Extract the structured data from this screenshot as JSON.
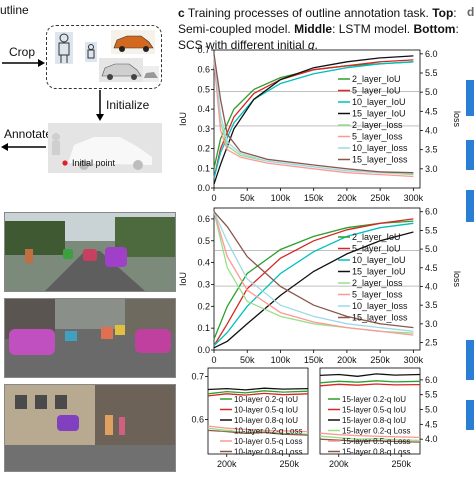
{
  "left_panel": {
    "title": "utline",
    "crop_label": "Crop",
    "initialize_label": "Initialize",
    "annotate_label": "Annotate",
    "initial_point_label": "Initial point"
  },
  "caption": {
    "letter": "c",
    "line1": "Training processes of outline annotation task.",
    "top": "Top",
    "line2a": "Semi-coupled model.",
    "middle": "Middle",
    "line2b": "LSTM model.",
    "bottom": "Bottom",
    "line3": "SCS with different initial",
    "q": "q",
    "right_letter": "d"
  },
  "chart_data": [
    {
      "type": "line",
      "title": "",
      "xlabel": "",
      "ylabel": "IoU",
      "y2label": "loss",
      "xlim": [
        0,
        310000
      ],
      "ylim": [
        0.0,
        0.7
      ],
      "y2lim": [
        2.5,
        6.1
      ],
      "x_ticks": [
        "0",
        "50k",
        "100k",
        "150k",
        "200k",
        "250k",
        "300k"
      ],
      "y_ticks": [
        "0.0",
        "0.1",
        "0.2",
        "0.3",
        "0.4",
        "0.5",
        "0.6",
        "0.7"
      ],
      "y2_ticks": [
        "3.0",
        "3.5",
        "4.0",
        "4.5",
        "5.0",
        "5.5",
        "6.0"
      ],
      "legend": "center-right",
      "series": [
        {
          "name": "2_layer_IoU",
          "color": "#2ca02c",
          "axis": "left",
          "x": [
            0,
            10000,
            30000,
            60000,
            100000,
            150000,
            200000,
            250000,
            300000
          ],
          "y": [
            0.1,
            0.25,
            0.4,
            0.5,
            0.56,
            0.6,
            0.62,
            0.63,
            0.64
          ]
        },
        {
          "name": "5_layer_IoU",
          "color": "#d62728",
          "axis": "left",
          "x": [
            0,
            10000,
            30000,
            60000,
            100000,
            150000,
            200000,
            250000,
            300000
          ],
          "y": [
            0.05,
            0.2,
            0.36,
            0.48,
            0.55,
            0.6,
            0.62,
            0.64,
            0.65
          ]
        },
        {
          "name": "10_layer_IoU",
          "color": "#00bfbf",
          "axis": "left",
          "x": [
            0,
            10000,
            30000,
            60000,
            100000,
            150000,
            200000,
            250000,
            300000
          ],
          "y": [
            0.05,
            0.18,
            0.33,
            0.45,
            0.53,
            0.58,
            0.61,
            0.63,
            0.64
          ]
        },
        {
          "name": "15_layer_IoU",
          "color": "#111111",
          "axis": "left",
          "x": [
            0,
            10000,
            30000,
            60000,
            100000,
            150000,
            200000,
            250000,
            300000
          ],
          "y": [
            0.02,
            0.12,
            0.3,
            0.45,
            0.55,
            0.61,
            0.64,
            0.66,
            0.67
          ]
        },
        {
          "name": "2_layer_loss",
          "color": "#98df8a",
          "axis": "right",
          "x": [
            0,
            10000,
            20000,
            40000,
            80000,
            150000,
            200000,
            250000,
            300000
          ],
          "y": [
            5.9,
            4.2,
            3.6,
            3.35,
            3.2,
            3.05,
            2.95,
            2.9,
            2.85
          ]
        },
        {
          "name": "5_layer_loss",
          "color": "#ff9896",
          "axis": "right",
          "x": [
            0,
            10000,
            20000,
            40000,
            80000,
            150000,
            200000,
            250000,
            300000
          ],
          "y": [
            5.8,
            4.0,
            3.5,
            3.3,
            3.15,
            3.0,
            2.9,
            2.85,
            2.8
          ]
        },
        {
          "name": "10_layer_loss",
          "color": "#9edae5",
          "axis": "right",
          "x": [
            0,
            10000,
            20000,
            40000,
            80000,
            150000,
            200000,
            250000,
            300000
          ],
          "y": [
            5.95,
            4.4,
            3.7,
            3.4,
            3.2,
            3.05,
            2.95,
            2.9,
            2.88
          ]
        },
        {
          "name": "15_layer_loss",
          "color": "#8c564b",
          "axis": "right",
          "x": [
            0,
            10000,
            20000,
            40000,
            80000,
            150000,
            200000,
            250000,
            300000
          ],
          "y": [
            6.0,
            4.8,
            3.9,
            3.45,
            3.25,
            3.1,
            3.0,
            2.92,
            2.9
          ]
        }
      ]
    },
    {
      "type": "line",
      "title": "",
      "xlabel": "",
      "ylabel": "IoU",
      "y2label": "loss",
      "xlim": [
        0,
        310000
      ],
      "ylim": [
        0.0,
        0.65
      ],
      "y2lim": [
        2.3,
        6.1
      ],
      "x_ticks": [
        "0",
        "50k",
        "100k",
        "150k",
        "200k",
        "250k",
        "300k"
      ],
      "y_ticks": [
        "0.0",
        "0.1",
        "0.2",
        "0.3",
        "0.4",
        "0.5",
        "0.6"
      ],
      "y2_ticks": [
        "2.5",
        "3.0",
        "3.5",
        "4.0",
        "4.5",
        "5.0",
        "5.5",
        "6.0"
      ],
      "legend": "center-right",
      "series": [
        {
          "name": "2_layer_IoU",
          "color": "#2ca02c",
          "axis": "left",
          "x": [
            0,
            20000,
            50000,
            100000,
            150000,
            200000,
            250000,
            300000
          ],
          "y": [
            0.05,
            0.2,
            0.35,
            0.46,
            0.52,
            0.56,
            0.58,
            0.59
          ]
        },
        {
          "name": "5_layer_IoU",
          "color": "#d62728",
          "axis": "left",
          "x": [
            0,
            20000,
            50000,
            100000,
            150000,
            200000,
            250000,
            300000
          ],
          "y": [
            0.02,
            0.12,
            0.28,
            0.42,
            0.5,
            0.55,
            0.58,
            0.6
          ]
        },
        {
          "name": "10_layer_IoU",
          "color": "#00bfbf",
          "axis": "left",
          "x": [
            0,
            20000,
            50000,
            100000,
            150000,
            200000,
            250000,
            300000
          ],
          "y": [
            0.02,
            0.08,
            0.2,
            0.35,
            0.45,
            0.52,
            0.56,
            0.58
          ]
        },
        {
          "name": "15_layer_IoU",
          "color": "#111111",
          "axis": "left",
          "x": [
            0,
            20000,
            50000,
            100000,
            150000,
            200000,
            250000,
            300000
          ],
          "y": [
            0.01,
            0.04,
            0.12,
            0.25,
            0.36,
            0.44,
            0.5,
            0.54
          ]
        },
        {
          "name": "2_layer_loss",
          "color": "#98df8a",
          "axis": "right",
          "x": [
            0,
            20000,
            50000,
            100000,
            150000,
            200000,
            250000,
            300000
          ],
          "y": [
            6.0,
            4.5,
            3.6,
            3.2,
            3.0,
            2.9,
            2.8,
            2.75
          ]
        },
        {
          "name": "5_layer_loss",
          "color": "#ff9896",
          "axis": "right",
          "x": [
            0,
            20000,
            50000,
            100000,
            150000,
            200000,
            250000,
            300000
          ],
          "y": [
            6.0,
            4.8,
            3.9,
            3.3,
            3.05,
            2.9,
            2.8,
            2.7
          ]
        },
        {
          "name": "10_layer_loss",
          "color": "#9edae5",
          "axis": "right",
          "x": [
            0,
            20000,
            50000,
            100000,
            150000,
            200000,
            250000,
            300000
          ],
          "y": [
            6.0,
            5.2,
            4.2,
            3.5,
            3.2,
            3.0,
            2.9,
            2.8
          ]
        },
        {
          "name": "15_layer_loss",
          "color": "#8c564b",
          "axis": "right",
          "x": [
            0,
            20000,
            50000,
            100000,
            150000,
            200000,
            250000,
            300000
          ],
          "y": [
            6.0,
            5.6,
            4.8,
            4.0,
            3.5,
            3.2,
            3.0,
            2.9
          ]
        }
      ]
    },
    {
      "type": "line",
      "title": "",
      "xlabel": "",
      "ylabel": "",
      "y2label": "",
      "xlim": [
        185000,
        265000
      ],
      "ylim": [
        0.52,
        0.72
      ],
      "x_ticks": [
        "200k",
        "250k"
      ],
      "y_ticks": [
        "0.6",
        "0.7"
      ],
      "legend": "lower-left",
      "series": [
        {
          "name": "10-layer 0.2-q IoU",
          "color": "#2ca02c",
          "x": [
            185000,
            200000,
            215000,
            230000,
            245000,
            265000
          ],
          "y": [
            0.66,
            0.665,
            0.662,
            0.667,
            0.664,
            0.666
          ]
        },
        {
          "name": "10-layer 0.5-q IoU",
          "color": "#d62728",
          "x": [
            185000,
            200000,
            215000,
            230000,
            245000,
            265000
          ],
          "y": [
            0.655,
            0.66,
            0.657,
            0.661,
            0.658,
            0.66
          ]
        },
        {
          "name": "10-layer 0.8-q IoU",
          "color": "#111111",
          "x": [
            185000,
            200000,
            215000,
            230000,
            245000,
            265000
          ],
          "y": [
            0.67,
            0.672,
            0.669,
            0.673,
            0.671,
            0.672
          ]
        },
        {
          "name": "10-layer 0.2-q Loss",
          "color": "#98df8a",
          "x": [
            185000,
            200000,
            215000,
            230000,
            245000,
            265000
          ],
          "y": [
            0.58,
            0.575,
            0.57,
            0.572,
            0.568,
            0.566
          ]
        },
        {
          "name": "10-layer 0.5-q Loss",
          "color": "#ff9896",
          "x": [
            185000,
            200000,
            215000,
            230000,
            245000,
            265000
          ],
          "y": [
            0.585,
            0.58,
            0.577,
            0.575,
            0.574,
            0.572
          ]
        },
        {
          "name": "10-layer 0.8-q Loss",
          "color": "#8c564b",
          "x": [
            185000,
            200000,
            215000,
            230000,
            245000,
            265000
          ],
          "y": [
            0.575,
            0.572,
            0.568,
            0.57,
            0.566,
            0.564
          ]
        }
      ]
    },
    {
      "type": "line",
      "title": "",
      "xlabel": "",
      "ylabel": "",
      "y2label": "",
      "xlim": [
        185000,
        265000
      ],
      "ylim": [
        3.5,
        6.4
      ],
      "x_ticks": [
        "200k",
        "250k"
      ],
      "y_ticks": [
        "4.0",
        "4.5",
        "5.0",
        "5.5",
        "6.0"
      ],
      "legend": "lower-left",
      "series": [
        {
          "name": "15-layer 0.2-q IoU",
          "color": "#2ca02c",
          "x": [
            185000,
            200000,
            215000,
            230000,
            245000,
            265000
          ],
          "y": [
            5.9,
            5.95,
            5.92,
            5.97,
            5.93,
            5.95
          ]
        },
        {
          "name": "15-layer 0.5-q IoU",
          "color": "#d62728",
          "x": [
            185000,
            200000,
            215000,
            230000,
            245000,
            265000
          ],
          "y": [
            5.8,
            5.85,
            5.82,
            5.86,
            5.83,
            5.84
          ]
        },
        {
          "name": "15-layer 0.8-q IoU",
          "color": "#111111",
          "x": [
            185000,
            200000,
            215000,
            230000,
            245000,
            265000
          ],
          "y": [
            6.15,
            6.18,
            6.12,
            6.2,
            6.16,
            6.18
          ]
        },
        {
          "name": "15-layer 0.2-q Loss",
          "color": "#98df8a",
          "x": [
            185000,
            200000,
            215000,
            230000,
            245000,
            265000
          ],
          "y": [
            4.1,
            4.05,
            4.0,
            4.02,
            3.98,
            3.96
          ]
        },
        {
          "name": "15-layer 0.5-q Loss",
          "color": "#ff9896",
          "x": [
            185000,
            200000,
            215000,
            230000,
            245000,
            265000
          ],
          "y": [
            4.2,
            4.15,
            4.12,
            4.1,
            4.08,
            4.06
          ]
        },
        {
          "name": "15-layer 0.8-q Loss",
          "color": "#8c564b",
          "x": [
            185000,
            200000,
            215000,
            230000,
            245000,
            265000
          ],
          "y": [
            4.0,
            3.97,
            3.93,
            3.95,
            3.92,
            3.9
          ]
        }
      ]
    }
  ]
}
